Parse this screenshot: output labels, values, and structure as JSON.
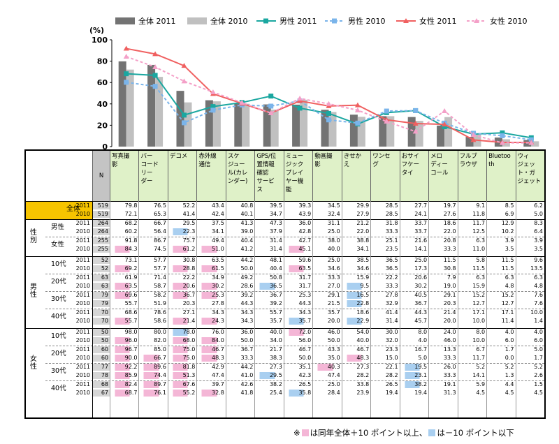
{
  "chart_data": {
    "type": "bar+line",
    "y_unit_label": "(%)",
    "ylim": [
      0,
      100
    ],
    "yticks": [
      0,
      20,
      40,
      60,
      80,
      100
    ],
    "categories": [
      "写真撮影",
      "バーコードリーダー",
      "デコメ",
      "赤外線通信",
      "スケジュール(カレンダー)",
      "GPS/位置情報確認サービス",
      "ミュージックプレイヤー機能",
      "動画撮影",
      "きせかえ",
      "ワンセグ",
      "おサイフケータイ",
      "メロディーコール",
      "フルブラウザ",
      "Bluetooth",
      "ウィジェット・ガジェット"
    ],
    "series": [
      {
        "name": "全体 2011",
        "kind": "bar",
        "color": "#737373",
        "values": [
          79.8,
          76.5,
          52.2,
          43.4,
          40.8,
          39.5,
          39.3,
          34.5,
          29.9,
          28.5,
          27.7,
          19.7,
          9.1,
          8.5,
          6.2
        ]
      },
      {
        "name": "全体 2010",
        "kind": "bar",
        "color": "#c0c0c0",
        "values": [
          72.1,
          65.3,
          41.4,
          42.4,
          40.1,
          34.7,
          43.9,
          32.4,
          27.9,
          28.5,
          24.1,
          27.6,
          11.8,
          6.9,
          5.0
        ]
      },
      {
        "name": "男性 2011",
        "kind": "line",
        "color": "#1aa7a0",
        "values": [
          68.2,
          66.7,
          29.5,
          37.5,
          41.3,
          47.3,
          36.0,
          31.1,
          21.2,
          31.8,
          33.7,
          18.6,
          11.7,
          12.9,
          8.3
        ]
      },
      {
        "name": "男性 2010",
        "kind": "line",
        "color": "#7ab4ea",
        "values": [
          60.2,
          56.4,
          22.3,
          34.1,
          39.0,
          37.9,
          42.8,
          25.0,
          22.0,
          33.3,
          33.7,
          22.0,
          12.5,
          10.2,
          6.4
        ]
      },
      {
        "name": "女性 2011",
        "kind": "line",
        "color": "#f06060",
        "values": [
          91.8,
          86.7,
          75.7,
          49.4,
          40.4,
          31.4,
          42.7,
          38.0,
          38.8,
          25.1,
          21.6,
          20.8,
          6.3,
          3.9,
          3.9
        ]
      },
      {
        "name": "女性 2010",
        "kind": "line",
        "color": "#f4a0c8",
        "values": [
          84.3,
          74.5,
          61.2,
          51.0,
          41.2,
          31.4,
          45.1,
          40.0,
          34.1,
          23.5,
          14.1,
          33.3,
          11.0,
          3.5,
          3.5
        ]
      }
    ]
  },
  "table": {
    "n_header": "N",
    "headers": [
      "写真撮影",
      "バーコードリーダー",
      "デコメ",
      "赤外線通信",
      "スケジュール(カレンダー)",
      "GPS/位置情報確認サービス",
      "ミュージックプレイヤー機能",
      "動画撮影",
      "きせかえ",
      "ワンセグ",
      "おサイフケータイ",
      "メロディーコール",
      "フルブラウザ",
      "Bluetooth",
      "ウィジェット・ガジェット"
    ],
    "header_lines": [
      [
        "写真撮",
        "影"
      ],
      [
        "バー",
        "コード",
        "リー",
        "ダー"
      ],
      [
        "デコメ"
      ],
      [
        "赤外線",
        "通信"
      ],
      [
        "スケ",
        "ジュー",
        "ル(カレ",
        "ンダー)"
      ],
      [
        "GPS/位",
        "置情報",
        "確認",
        "サービ",
        "ス"
      ],
      [
        "ミュー",
        "ジック",
        "プレイ",
        "ヤー機",
        "能"
      ],
      [
        "動画撮",
        "影"
      ],
      [
        "きせか",
        "え"
      ],
      [
        "ワンセ",
        "グ"
      ],
      [
        "おサイ",
        "フケー",
        "タイ"
      ],
      [
        "メロ",
        "ディー",
        "コール"
      ],
      [
        "フルブ",
        "ラウザ"
      ],
      [
        "Bluetoo",
        "th"
      ],
      [
        "ウィ",
        "ジェッ",
        "ト・ガ",
        "ジェット"
      ]
    ],
    "groups": [
      {
        "label": "全体",
        "sub": "",
        "rows": [
          {
            "year": "2011",
            "n": "519",
            "v": [
              "79.8",
              "76.5",
              "52.2",
              "43.4",
              "40.8",
              "39.5",
              "39.3",
              "34.5",
              "29.9",
              "28.5",
              "27.7",
              "19.7",
              "9.1",
              "8.5",
              "6.2"
            ]
          },
          {
            "year": "2010",
            "n": "519",
            "v": [
              "72.1",
              "65.3",
              "41.4",
              "42.4",
              "40.1",
              "34.7",
              "43.9",
              "32.4",
              "27.9",
              "28.5",
              "24.1",
              "27.6",
              "11.8",
              "6.9",
              "5.0"
            ]
          }
        ]
      },
      {
        "label": "性別",
        "sub": "男性",
        "rows": [
          {
            "year": "2011",
            "n": "264",
            "v": [
              "68.2",
              "66.7",
              "29.5",
              "37.5",
              "41.3",
              "47.3",
              "36.0",
              "31.1",
              "21.2",
              "31.8",
              "33.7",
              "18.6",
              "11.7",
              "12.9",
              "8.3"
            ]
          },
          {
            "year": "2010",
            "n": "264",
            "v": [
              "60.2",
              "56.4",
              "22.3",
              "34.1",
              "39.0",
              "37.9",
              "42.8",
              "25.0",
              "22.0",
              "33.3",
              "33.7",
              "22.0",
              "12.5",
              "10.2",
              "6.4"
            ]
          }
        ]
      },
      {
        "label": "",
        "sub": "女性",
        "rows": [
          {
            "year": "2011",
            "n": "255",
            "v": [
              "91.8",
              "86.7",
              "75.7",
              "49.4",
              "40.4",
              "31.4",
              "42.7",
              "38.0",
              "38.8",
              "25.1",
              "21.6",
              "20.8",
              "6.3",
              "3.9",
              "3.9"
            ]
          },
          {
            "year": "2010",
            "n": "255",
            "v": [
              "84.3",
              "74.5",
              "61.2",
              "51.0",
              "41.2",
              "31.4",
              "45.1",
              "40.0",
              "34.1",
              "23.5",
              "14.1",
              "33.3",
              "11.0",
              "3.5",
              "3.5"
            ]
          }
        ]
      },
      {
        "label": "男性",
        "sub": "10代",
        "rows": [
          {
            "year": "2011",
            "n": "52",
            "v": [
              "73.1",
              "57.7",
              "30.8",
              "63.5",
              "44.2",
              "48.1",
              "59.6",
              "25.0",
              "38.5",
              "36.5",
              "25.0",
              "11.5",
              "5.8",
              "11.5",
              "9.6"
            ]
          },
          {
            "year": "2010",
            "n": "52",
            "v": [
              "69.2",
              "57.7",
              "28.8",
              "61.5",
              "50.0",
              "40.4",
              "63.5",
              "34.6",
              "34.6",
              "36.5",
              "17.3",
              "30.8",
              "11.5",
              "11.5",
              "13.5"
            ]
          }
        ]
      },
      {
        "label": "",
        "sub": "20代",
        "rows": [
          {
            "year": "2011",
            "n": "63",
            "v": [
              "61.9",
              "71.4",
              "22.2",
              "34.9",
              "49.2",
              "50.8",
              "31.7",
              "33.3",
              "15.9",
              "22.2",
              "20.6",
              "7.9",
              "6.3",
              "6.3",
              "6.3"
            ]
          },
          {
            "year": "2010",
            "n": "63",
            "v": [
              "63.5",
              "58.7",
              "20.6",
              "30.2",
              "28.6",
              "36.5",
              "31.7",
              "27.0",
              "9.5",
              "33.3",
              "30.2",
              "19.0",
              "15.9",
              "4.8",
              "4.8"
            ]
          }
        ]
      },
      {
        "label": "",
        "sub": "30代",
        "rows": [
          {
            "year": "2011",
            "n": "79",
            "v": [
              "69.6",
              "58.2",
              "36.7",
              "25.3",
              "39.2",
              "36.7",
              "25.3",
              "29.1",
              "16.5",
              "27.8",
              "40.5",
              "29.1",
              "15.2",
              "15.2",
              "7.6"
            ]
          },
          {
            "year": "2010",
            "n": "79",
            "v": [
              "55.7",
              "51.9",
              "20.3",
              "27.8",
              "44.3",
              "39.2",
              "44.3",
              "21.5",
              "22.8",
              "32.9",
              "36.7",
              "20.3",
              "12.7",
              "12.7",
              "7.6"
            ]
          }
        ]
      },
      {
        "label": "",
        "sub": "40代",
        "rows": [
          {
            "year": "2011",
            "n": "70",
            "v": [
              "68.6",
              "78.6",
              "27.1",
              "34.3",
              "34.3",
              "55.7",
              "34.3",
              "35.7",
              "18.6",
              "41.4",
              "44.3",
              "21.4",
              "17.1",
              "17.1",
              "10.0"
            ]
          },
          {
            "year": "2010",
            "n": "70",
            "v": [
              "55.7",
              "58.6",
              "21.4",
              "24.3",
              "34.3",
              "35.7",
              "35.7",
              "20.0",
              "22.9",
              "31.4",
              "45.7",
              "20.0",
              "10.0",
              "11.4",
              "1.4"
            ]
          }
        ]
      },
      {
        "label": "女性",
        "sub": "10代",
        "rows": [
          {
            "year": "2011",
            "n": "50",
            "v": [
              "98.0",
              "80.0",
              "78.0",
              "76.0",
              "36.0",
              "40.0",
              "72.0",
              "46.0",
              "54.0",
              "30.0",
              "8.0",
              "24.0",
              "8.0",
              "4.0",
              "4.0"
            ]
          },
          {
            "year": "2010",
            "n": "50",
            "v": [
              "96.0",
              "82.0",
              "68.0",
              "84.0",
              "50.0",
              "34.0",
              "56.0",
              "50.0",
              "40.0",
              "32.0",
              "4.0",
              "46.0",
              "10.0",
              "6.0",
              "6.0"
            ]
          }
        ]
      },
      {
        "label": "",
        "sub": "20代",
        "rows": [
          {
            "year": "2011",
            "n": "60",
            "v": [
              "96.7",
              "85.0",
              "75.0",
              "46.7",
              "36.7",
              "21.7",
              "46.7",
              "43.3",
              "46.7",
              "23.3",
              "16.7",
              "13.3",
              "6.7",
              "1.7",
              "5.0"
            ]
          },
          {
            "year": "2010",
            "n": "60",
            "v": [
              "90.0",
              "66.7",
              "75.0",
              "48.3",
              "33.3",
              "38.3",
              "50.0",
              "35.0",
              "48.3",
              "15.0",
              "5.0",
              "33.3",
              "11.7",
              "0.0",
              "1.7"
            ]
          }
        ]
      },
      {
        "label": "",
        "sub": "30代",
        "rows": [
          {
            "year": "2011",
            "n": "77",
            "v": [
              "92.2",
              "89.6",
              "81.8",
              "42.9",
              "44.2",
              "27.3",
              "35.1",
              "40.3",
              "27.3",
              "22.1",
              "19.5",
              "26.0",
              "5.2",
              "5.2",
              "5.2"
            ]
          },
          {
            "year": "2010",
            "n": "78",
            "v": [
              "85.9",
              "74.4",
              "51.3",
              "47.4",
              "41.0",
              "29.5",
              "42.3",
              "47.4",
              "28.2",
              "28.2",
              "23.1",
              "33.3",
              "14.1",
              "1.3",
              "2.6"
            ]
          }
        ]
      },
      {
        "label": "",
        "sub": "40代",
        "rows": [
          {
            "year": "2011",
            "n": "68",
            "v": [
              "82.4",
              "89.7",
              "67.6",
              "39.7",
              "42.6",
              "38.2",
              "26.5",
              "25.0",
              "33.8",
              "26.5",
              "38.2",
              "19.1",
              "5.9",
              "4.4",
              "1.5"
            ]
          },
          {
            "year": "2010",
            "n": "67",
            "v": [
              "68.7",
              "76.1",
              "55.2",
              "32.8",
              "41.8",
              "25.4",
              "35.8",
              "28.4",
              "23.9",
              "19.4",
              "19.4",
              "31.3",
              "4.5",
              "4.5",
              "4.5"
            ]
          }
        ]
      }
    ],
    "highlight_pink": [
      [
        5,
        0
      ],
      [
        5,
        2
      ],
      [
        5,
        3
      ],
      [
        5,
        6
      ],
      [
        7,
        0
      ],
      [
        7,
        2
      ],
      [
        7,
        3
      ],
      [
        7,
        6
      ],
      [
        9,
        0
      ],
      [
        9,
        2
      ],
      [
        9,
        3
      ],
      [
        10,
        0
      ],
      [
        10,
        2
      ],
      [
        10,
        3
      ],
      [
        13,
        0
      ],
      [
        13,
        2
      ],
      [
        13,
        3
      ],
      [
        14,
        6
      ],
      [
        15,
        0
      ],
      [
        15,
        2
      ],
      [
        15,
        3
      ],
      [
        16,
        0
      ],
      [
        16,
        2
      ],
      [
        16,
        3
      ],
      [
        17,
        0
      ],
      [
        17,
        1
      ],
      [
        17,
        2
      ],
      [
        17,
        3
      ],
      [
        17,
        8
      ],
      [
        18,
        0
      ],
      [
        18,
        1
      ],
      [
        18,
        2
      ],
      [
        18,
        7
      ],
      [
        19,
        0
      ],
      [
        19,
        1
      ],
      [
        19,
        2
      ],
      [
        20,
        0
      ],
      [
        20,
        1
      ],
      [
        20,
        2
      ],
      [
        21,
        0
      ],
      [
        21,
        1
      ],
      [
        21,
        2
      ],
      [
        21,
        3
      ]
    ],
    "highlight_blue": [
      [
        3,
        2
      ],
      [
        9,
        5
      ],
      [
        9,
        8
      ],
      [
        10,
        8
      ],
      [
        11,
        8
      ],
      [
        13,
        8
      ],
      [
        13,
        6
      ],
      [
        14,
        2
      ],
      [
        19,
        5
      ],
      [
        19,
        10
      ],
      [
        20,
        10
      ],
      [
        21,
        6
      ],
      [
        18,
        10
      ]
    ],
    "footnote_prefix": "※",
    "footnote_pink": "は同年全体＋10 ポイント以上、",
    "footnote_blue": "は－10 ポイント以下",
    "colors": {
      "header_bg": "#dff1c8",
      "n_bg": "#c4c4c4",
      "total_bg": "#f6c400",
      "pink": "#f4b6d6",
      "blue": "#a9cff0"
    }
  }
}
